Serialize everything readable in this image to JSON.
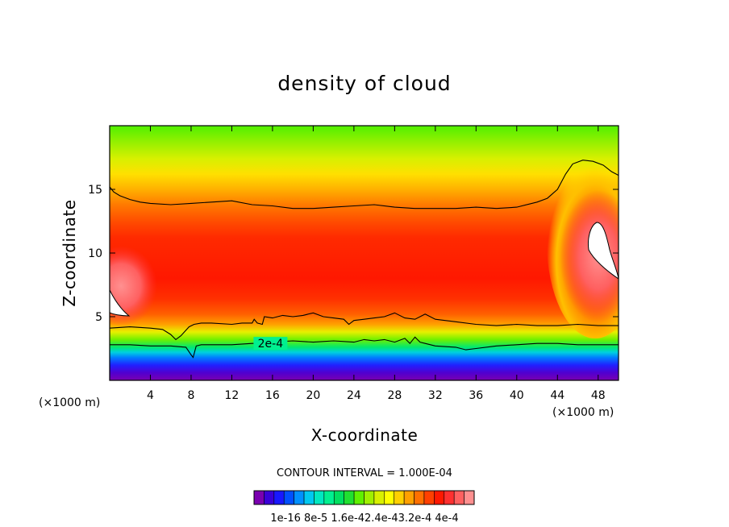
{
  "chart_data": {
    "type": "contour",
    "title": "density of cloud",
    "xlabel": "X-coordinate",
    "ylabel": "Z-coordinate",
    "x_unit": "(×1000 m)",
    "y_unit": "(×1000 m)",
    "xlim": [
      0,
      50
    ],
    "ylim": [
      0,
      20
    ],
    "x_ticks": [
      4,
      8,
      12,
      16,
      20,
      24,
      28,
      32,
      36,
      40,
      44,
      48
    ],
    "x_tick_labels": [
      "4",
      "8",
      "12",
      "16",
      "20",
      "24",
      "28",
      "32",
      "36",
      "40",
      "44",
      "48"
    ],
    "y_ticks": [
      5,
      10,
      15
    ],
    "y_tick_labels": [
      "5",
      "10",
      "15"
    ],
    "contour_interval_text": "CONTOUR INTERVAL =  1.000E-04",
    "contour_label": "2e-4",
    "contour_label_x": 15.8,
    "contour_label_z": 2.9,
    "colorbar_labels": "1e-16 8e-5 1.6e-42.4e-43.2e-4 4e-4",
    "colorbar_levels": [
      0,
      2e-05,
      4e-05,
      6e-05,
      8e-05,
      0.0001,
      0.00012,
      0.00014,
      0.00016,
      0.00018,
      0.0002,
      0.00022,
      0.00024,
      0.00026,
      0.00028,
      0.0003,
      0.00032,
      0.00034,
      0.00036,
      0.00038,
      0.0004
    ],
    "colorbar_colors": [
      "#7a00b0",
      "#3a00d8",
      "#1818ff",
      "#0050ff",
      "#0090ff",
      "#00c8f0",
      "#00e8c0",
      "#00f090",
      "#00e060",
      "#20e030",
      "#60f000",
      "#a0f000",
      "#d8f000",
      "#ffff00",
      "#ffd000",
      "#ffa000",
      "#ff7000",
      "#ff4000",
      "#ff1800",
      "#ff3030",
      "#ff6060",
      "#ff9090"
    ],
    "contour_lines": [
      {
        "value": 0.0004,
        "x": [
          0,
          0.4,
          1,
          2,
          3,
          4,
          6,
          8,
          10,
          12,
          14,
          16,
          18,
          20,
          22,
          24,
          26,
          28,
          30,
          32,
          34,
          36,
          38,
          40,
          42,
          43,
          44,
          44.8,
          45.5,
          46.5,
          47.5,
          48.5,
          49.3,
          50
        ],
        "z": [
          15.2,
          14.8,
          14.5,
          14.2,
          14.0,
          13.9,
          13.8,
          13.9,
          14.0,
          14.1,
          13.8,
          13.7,
          13.5,
          13.5,
          13.6,
          13.7,
          13.8,
          13.6,
          13.5,
          13.5,
          13.5,
          13.6,
          13.5,
          13.6,
          14.0,
          14.3,
          15.0,
          16.2,
          17.0,
          17.3,
          17.2,
          16.9,
          16.4,
          16.1
        ]
      },
      {
        "value": 0.0003,
        "x": [
          0,
          2,
          4,
          5.2,
          6,
          6.5,
          7,
          7.8,
          8.3,
          9,
          10,
          12,
          13,
          14,
          14.2,
          14.5,
          15,
          15.2,
          16,
          17,
          18,
          19,
          20,
          21,
          22,
          23,
          23.5,
          24,
          25,
          26,
          27,
          28,
          29,
          30,
          31,
          32,
          34,
          36,
          38,
          40,
          42,
          44,
          46,
          48,
          50
        ],
        "z": [
          4.1,
          4.2,
          4.1,
          4.0,
          3.6,
          3.2,
          3.5,
          4.2,
          4.4,
          4.5,
          4.5,
          4.4,
          4.5,
          4.5,
          4.8,
          4.5,
          4.4,
          5.0,
          4.9,
          5.1,
          5.0,
          5.1,
          5.3,
          5.0,
          4.9,
          4.8,
          4.4,
          4.7,
          4.8,
          4.9,
          5.0,
          5.3,
          4.9,
          4.8,
          5.2,
          4.8,
          4.6,
          4.4,
          4.3,
          4.4,
          4.3,
          4.3,
          4.4,
          4.3,
          4.3
        ]
      },
      {
        "value": 0.0002,
        "x": [
          0,
          2,
          4,
          6,
          7.5,
          8,
          8.2,
          8.5,
          9,
          10,
          12,
          14,
          15,
          16,
          18,
          20,
          22,
          24,
          25,
          26,
          27,
          28,
          29,
          29.5,
          30,
          30.5,
          31,
          32,
          34,
          35,
          36,
          38,
          40,
          42,
          44,
          46,
          48,
          50
        ],
        "z": [
          2.8,
          2.8,
          2.7,
          2.7,
          2.6,
          2.0,
          1.8,
          2.7,
          2.8,
          2.8,
          2.8,
          2.9,
          2.9,
          3.0,
          3.1,
          3.0,
          3.1,
          3.0,
          3.2,
          3.1,
          3.2,
          3.0,
          3.3,
          2.9,
          3.4,
          3.0,
          2.9,
          2.7,
          2.6,
          2.4,
          2.5,
          2.7,
          2.8,
          2.9,
          2.9,
          2.8,
          2.8,
          2.8
        ]
      }
    ]
  }
}
